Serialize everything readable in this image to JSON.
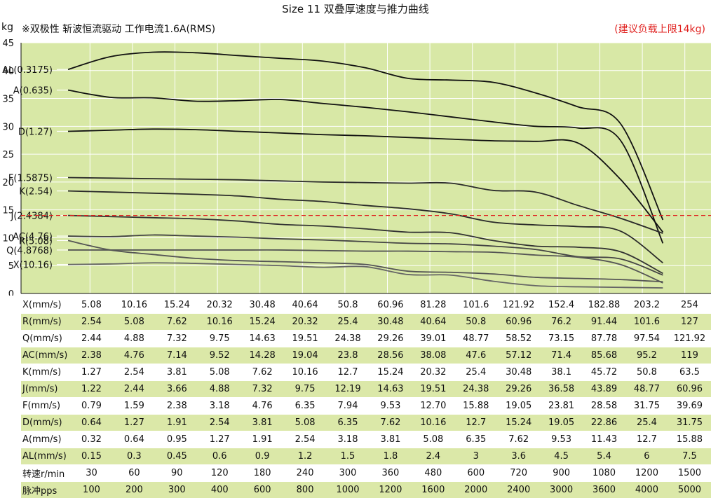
{
  "title": "Size 11 双叠厚速度与推力曲线",
  "unit_label": "kg",
  "subtitle": "※双极性 斩波恒流驱动 工作电流1.6A(RMS)",
  "limit_note": "(建议负载上限14kg)",
  "colors": {
    "plot_bg": "#d8e8a6",
    "limit_line": "#e0201e",
    "row_alt": "#dbe8a8"
  },
  "chart_data": {
    "type": "line",
    "x_positions": 15,
    "ylim": [
      0,
      45
    ],
    "yticks": [
      0,
      5,
      10,
      15,
      20,
      25,
      30,
      35,
      40,
      45
    ],
    "grid": true,
    "reference_line": {
      "y": 14,
      "style": "dashed",
      "color": "#e0201e"
    },
    "series": [
      {
        "name": "AL(0.3175)",
        "values": [
          40.2,
          42.5,
          43.3,
          43.2,
          42.7,
          42.2,
          41.7,
          40.5,
          38.6,
          38.3,
          37.9,
          36.0,
          33.5,
          30.5,
          13.2
        ],
        "color": "#111111"
      },
      {
        "name": "A(0.635)",
        "values": [
          36.5,
          35.2,
          35.1,
          34.5,
          34.6,
          34.8,
          34.1,
          33.4,
          32.6,
          31.7,
          30.8,
          30.0,
          29.7,
          27.5,
          9.0
        ],
        "color": "#111111"
      },
      {
        "name": "D(1.27)",
        "values": [
          29.1,
          29.3,
          29.5,
          29.4,
          29.1,
          28.8,
          28.5,
          28.3,
          28.0,
          27.7,
          27.4,
          27.3,
          27.0,
          20.5,
          11.0
        ],
        "color": "#111111"
      },
      {
        "name": "F(1.5875)",
        "values": [
          20.8,
          20.7,
          20.6,
          20.5,
          20.4,
          20.2,
          20.0,
          19.9,
          19.8,
          19.8,
          18.5,
          18.2,
          15.8,
          13.5,
          10.8
        ],
        "color": "#2a2a2a"
      },
      {
        "name": "K(2.54)",
        "values": [
          18.4,
          18.2,
          18.0,
          17.8,
          17.5,
          16.9,
          16.5,
          15.8,
          15.2,
          14.3,
          12.8,
          12.3,
          12.0,
          11.2,
          5.5
        ],
        "color": "#2a2a2a"
      },
      {
        "name": "J(2.4384)",
        "values": [
          14.0,
          13.8,
          13.6,
          13.4,
          13.0,
          12.4,
          12.1,
          11.6,
          11.0,
          10.9,
          9.5,
          8.5,
          8.3,
          7.5,
          3.6
        ],
        "color": "#333333"
      },
      {
        "name": "AC(4.76)",
        "values": [
          10.3,
          10.2,
          10.5,
          10.3,
          10.1,
          9.8,
          9.6,
          9.3,
          9.0,
          8.9,
          8.5,
          7.9,
          6.6,
          6.2,
          3.3
        ],
        "color": "#444444"
      },
      {
        "name": "R(5.08)",
        "values": [
          9.5,
          7.8,
          7.0,
          6.3,
          5.9,
          5.7,
          5.5,
          5.2,
          4.0,
          3.8,
          3.5,
          2.9,
          2.7,
          2.5,
          2.1
        ],
        "color": "#555555"
      },
      {
        "name": "Q(4.8768)",
        "values": [
          7.8,
          7.8,
          7.8,
          7.8,
          7.8,
          7.8,
          7.7,
          7.6,
          7.6,
          7.5,
          7.4,
          6.9,
          6.5,
          5.2,
          1.9
        ],
        "color": "#555555"
      },
      {
        "name": "X(10.16)",
        "values": [
          5.2,
          5.3,
          5.5,
          5.4,
          5.2,
          5.0,
          4.7,
          4.8,
          3.4,
          3.3,
          2.2,
          1.4,
          1.2,
          1.1,
          1.0
        ],
        "color": "#666666"
      }
    ]
  },
  "table": {
    "rows": [
      {
        "label": "X(mm/s)",
        "values": [
          "5.08",
          "10.16",
          "15.24",
          "20.32",
          "30.48",
          "40.64",
          "50.8",
          "60.96",
          "81.28",
          "101.6",
          "121.92",
          "152.4",
          "182.88",
          "203.2",
          "254"
        ]
      },
      {
        "label": "R(mm/s)",
        "values": [
          "2.54",
          "5.08",
          "7.62",
          "10.16",
          "15.24",
          "20.32",
          "25.4",
          "30.48",
          "40.64",
          "50.8",
          "60.96",
          "76.2",
          "91.44",
          "101.6",
          "127"
        ]
      },
      {
        "label": "Q(mm/s)",
        "values": [
          "2.44",
          "4.88",
          "7.32",
          "9.75",
          "14.63",
          "19.51",
          "24.38",
          "29.26",
          "39.01",
          "48.77",
          "58.52",
          "73.15",
          "87.78",
          "97.54",
          "121.92"
        ]
      },
      {
        "label": "AC(mm/s)",
        "values": [
          "2.38",
          "4.76",
          "7.14",
          "9.52",
          "14.28",
          "19.04",
          "23.8",
          "28.56",
          "38.08",
          "47.6",
          "57.12",
          "71.4",
          "85.68",
          "95.2",
          "119"
        ]
      },
      {
        "label": "K(mm/s)",
        "values": [
          "1.27",
          "2.54",
          "3.81",
          "5.08",
          "7.62",
          "10.16",
          "12.7",
          "15.24",
          "20.32",
          "25.4",
          "30.48",
          "38.1",
          "45.72",
          "50.8",
          "63.5"
        ]
      },
      {
        "label": "J(mm/s)",
        "values": [
          "1.22",
          "2.44",
          "3.66",
          "4.88",
          "7.32",
          "9.75",
          "12.19",
          "14.63",
          "19.51",
          "24.38",
          "29.26",
          "36.58",
          "43.89",
          "48.77",
          "60.96"
        ]
      },
      {
        "label": "F(mm/s)",
        "values": [
          "0.79",
          "1.59",
          "2.38",
          "3.18",
          "4.76",
          "6.35",
          "7.94",
          "9.53",
          "12.70",
          "15.88",
          "19.05",
          "23.81",
          "28.58",
          "31.75",
          "39.69"
        ]
      },
      {
        "label": "D(mm/s)",
        "values": [
          "0.64",
          "1.27",
          "1.91",
          "2.54",
          "3.81",
          "5.08",
          "6.35",
          "7.62",
          "10.16",
          "12.7",
          "15.24",
          "19.05",
          "22.86",
          "25.4",
          "31.75"
        ]
      },
      {
        "label": "A(mm/s)",
        "values": [
          "0.32",
          "0.64",
          "0.95",
          "1.27",
          "1.91",
          "2.54",
          "3.18",
          "3.81",
          "5.08",
          "6.35",
          "7.62",
          "9.53",
          "11.43",
          "12.7",
          "15.88"
        ]
      },
      {
        "label": "AL(mm/s)",
        "values": [
          "0.15",
          "0.3",
          "0.45",
          "0.6",
          "0.9",
          "1.2",
          "1.5",
          "1.8",
          "2.4",
          "3",
          "3.6",
          "4.5",
          "5.4",
          "6",
          "7.5"
        ]
      },
      {
        "label": "转速r/min",
        "values": [
          "30",
          "60",
          "90",
          "120",
          "180",
          "240",
          "300",
          "360",
          "480",
          "600",
          "720",
          "900",
          "1080",
          "1200",
          "1500"
        ]
      },
      {
        "label": "脉冲pps",
        "values": [
          "100",
          "200",
          "300",
          "400",
          "600",
          "800",
          "1000",
          "1200",
          "1600",
          "2000",
          "2400",
          "3000",
          "3600",
          "4000",
          "5000"
        ]
      }
    ]
  }
}
